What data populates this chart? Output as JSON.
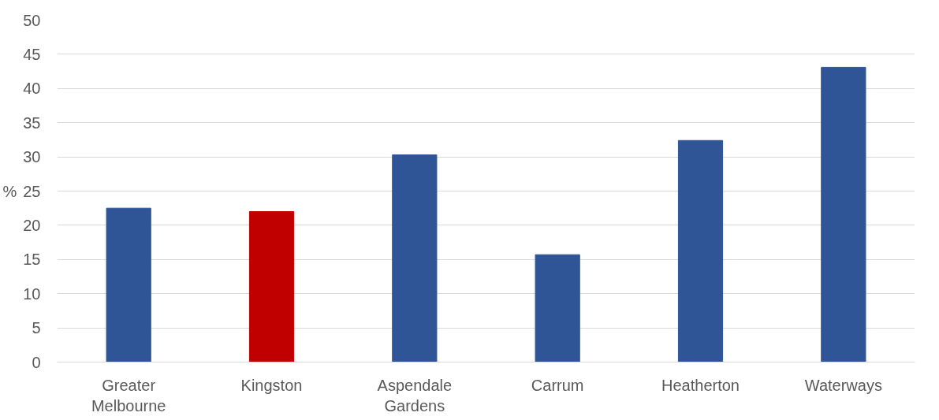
{
  "chart_data": {
    "type": "bar",
    "ylabel": "%",
    "categories": [
      "Greater Melbourne",
      "Kingston",
      "Aspendale Gardens",
      "Carrum",
      "Heatherton",
      "Waterways"
    ],
    "values": [
      22.5,
      22.0,
      30.3,
      15.7,
      32.4,
      43.1
    ],
    "colors": [
      "#2f5597",
      "#c00000",
      "#2f5597",
      "#2f5597",
      "#2f5597",
      "#2f5597"
    ],
    "ylim": [
      0,
      50
    ],
    "yticks": [
      0,
      5,
      10,
      15,
      20,
      25,
      30,
      35,
      40,
      45,
      50
    ],
    "grid": "y"
  }
}
